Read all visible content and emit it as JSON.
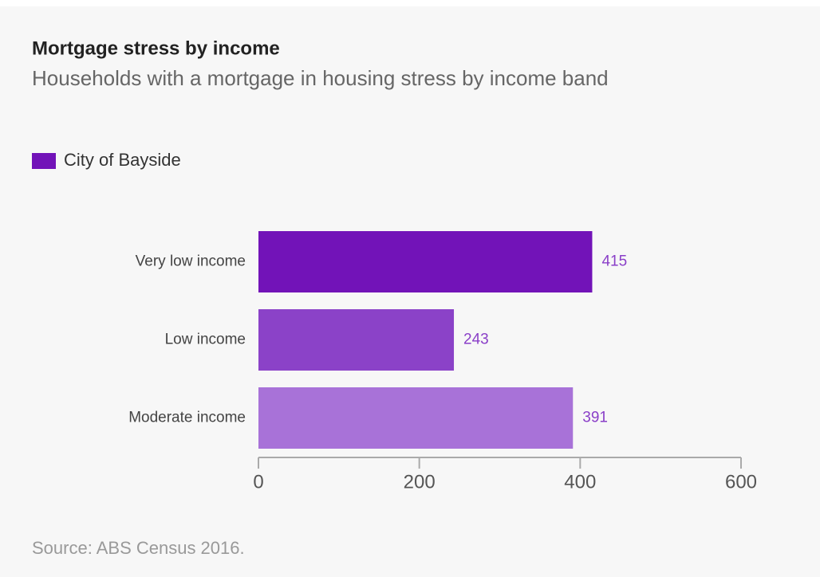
{
  "chart_data": {
    "type": "bar",
    "orientation": "horizontal",
    "title": "Mortgage stress by income",
    "subtitle": "Households with a mortgage in housing stress by income band",
    "source": "Source: ABS Census 2016.",
    "categories": [
      "Very low income",
      "Low income",
      "Moderate income"
    ],
    "series": [
      {
        "name": "City of Bayside",
        "color": "#7213b8",
        "values": [
          415,
          243,
          391
        ]
      }
    ],
    "colors": [
      "#7213b8",
      "#8b42c8",
      "#a872d8"
    ],
    "value_label_color": "#8a3fc8",
    "xlim": [
      0,
      600
    ],
    "xticks": [
      0,
      200,
      400,
      600
    ],
    "grid": false
  }
}
